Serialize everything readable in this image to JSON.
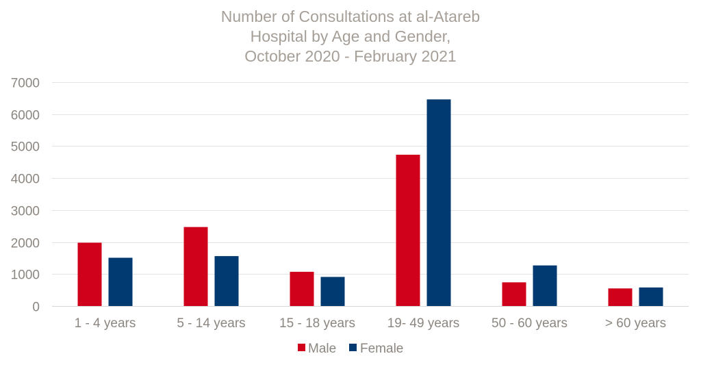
{
  "chart_data": {
    "type": "bar",
    "title": [
      "Number of Consultations at al-Atareb",
      "Hospital by Age and Gender,",
      "October 2020 - February 2021"
    ],
    "xlabel": "",
    "ylabel": "",
    "categories": [
      "1 - 4 years",
      "5 - 14 years",
      "15 - 18 years",
      "19- 49 years",
      "50 - 60 years",
      "> 60 years"
    ],
    "series": [
      {
        "name": "Male",
        "color": "#d0021b",
        "values": [
          1980,
          2470,
          1070,
          4730,
          740,
          550
        ]
      },
      {
        "name": "Female",
        "color": "#003a70",
        "values": [
          1510,
          1560,
          910,
          6460,
          1270,
          580
        ]
      }
    ],
    "ylim": [
      0,
      7000
    ],
    "yticks": [
      "0",
      "1000",
      "2000",
      "3000",
      "4000",
      "5000",
      "6000",
      "7000"
    ],
    "grid": true,
    "legend_position": "bottom"
  }
}
